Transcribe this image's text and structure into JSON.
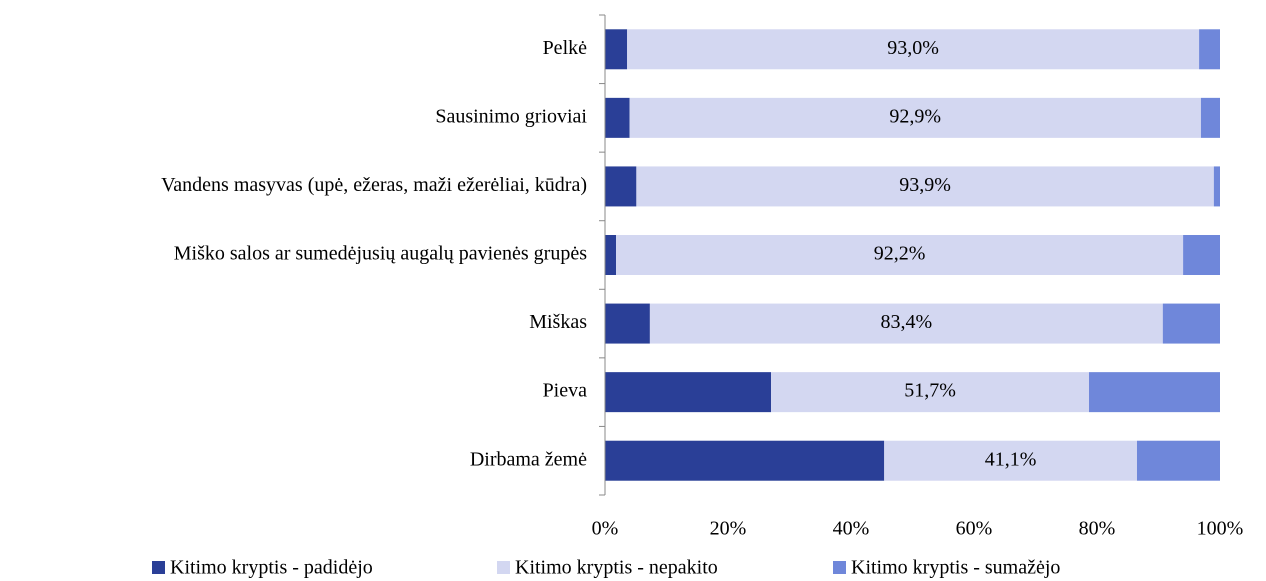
{
  "chart_data": {
    "type": "stacked_barh",
    "categories": [
      "Pelkė",
      "Sausinimo grioviai",
      "Vandens masyvas (upė, ežeras, maži ežerėliai, kūdra)",
      "Miško salos ar sumedėjusių augalų pavienės grupės",
      "Miškas",
      "Pieva",
      "Dirbama žemė"
    ],
    "series": [
      {
        "name": "Kitimo kryptis - padidėjo",
        "color": "#2a3f97",
        "values": [
          3.6,
          4.0,
          5.1,
          1.8,
          7.3,
          27.0,
          45.4
        ]
      },
      {
        "name": "Kitimo kryptis - nepakito",
        "color": "#d3d7f1",
        "values": [
          93.0,
          92.9,
          93.9,
          92.2,
          83.4,
          51.7,
          41.1
        ],
        "value_labels": [
          "93,0%",
          "92,9%",
          "93,9%",
          "92,2%",
          "83,4%",
          "51,7%",
          "41,1%"
        ]
      },
      {
        "name": "Kitimo kryptis - sumažėjo",
        "color": "#6f87da",
        "values": [
          3.4,
          3.1,
          1.0,
          6.0,
          9.3,
          21.3,
          13.5
        ]
      }
    ],
    "xlim": [
      0,
      100
    ],
    "xticks": [
      {
        "value": 0,
        "label": "0%"
      },
      {
        "value": 20,
        "label": "20%"
      },
      {
        "value": 40,
        "label": "40%"
      },
      {
        "value": 60,
        "label": "60%"
      },
      {
        "value": 80,
        "label": "80%"
      },
      {
        "value": 100,
        "label": "100%"
      }
    ],
    "legend": "bottom"
  }
}
